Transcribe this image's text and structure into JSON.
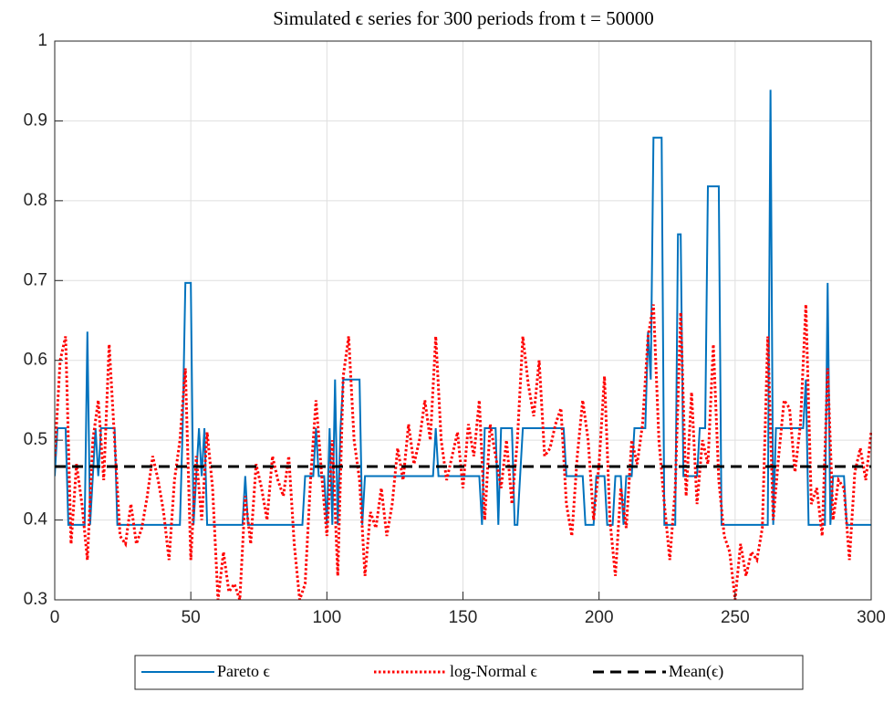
{
  "chart_data": {
    "type": "line",
    "title": "Simulated ϵ series for 300 periods from t = 50000",
    "xlim": [
      0,
      300
    ],
    "xticks": [
      0,
      50,
      100,
      150,
      200,
      250,
      300
    ],
    "ylim": [
      0.3,
      1
    ],
    "yticks": [
      0.3,
      0.4,
      0.5,
      0.6,
      0.7,
      0.8,
      0.9,
      1
    ],
    "grid": true,
    "legend": "bottom",
    "series": [
      {
        "name": "Pareto ϵ",
        "color": "#0072bd",
        "linestyle": "solid",
        "x": [
          0,
          1,
          4,
          5,
          11,
          12,
          13,
          14,
          15,
          16,
          17,
          22,
          23,
          46,
          47,
          48,
          50,
          51,
          52,
          53,
          54,
          55,
          56,
          69,
          70,
          71,
          91,
          92,
          95,
          96,
          97,
          99,
          100,
          101,
          102,
          103,
          104,
          105,
          106,
          112,
          113,
          114,
          139,
          140,
          141,
          156,
          157,
          158,
          162,
          163,
          164,
          168,
          169,
          170,
          171,
          172,
          187,
          188,
          194,
          195,
          198,
          199,
          202,
          203,
          205,
          206,
          208,
          209,
          210,
          212,
          213,
          217,
          218,
          219,
          220,
          223,
          224,
          228,
          229,
          230,
          231,
          236,
          237,
          239,
          240,
          244,
          245,
          262,
          263,
          264,
          265,
          275,
          276,
          277,
          283,
          284,
          285,
          286,
          290,
          291,
          300
        ],
        "values": [
          0.455,
          0.515,
          0.515,
          0.394,
          0.394,
          0.636,
          0.394,
          0.455,
          0.515,
          0.455,
          0.515,
          0.515,
          0.394,
          0.394,
          0.515,
          0.697,
          0.697,
          0.394,
          0.455,
          0.515,
          0.455,
          0.515,
          0.394,
          0.394,
          0.455,
          0.394,
          0.394,
          0.455,
          0.455,
          0.515,
          0.455,
          0.455,
          0.394,
          0.515,
          0.394,
          0.576,
          0.394,
          0.515,
          0.576,
          0.576,
          0.394,
          0.455,
          0.455,
          0.515,
          0.455,
          0.455,
          0.394,
          0.515,
          0.515,
          0.394,
          0.515,
          0.515,
          0.394,
          0.394,
          0.455,
          0.515,
          0.515,
          0.455,
          0.455,
          0.394,
          0.394,
          0.455,
          0.455,
          0.394,
          0.394,
          0.455,
          0.455,
          0.394,
          0.455,
          0.455,
          0.515,
          0.515,
          0.636,
          0.576,
          0.879,
          0.879,
          0.394,
          0.394,
          0.758,
          0.758,
          0.455,
          0.455,
          0.515,
          0.515,
          0.818,
          0.818,
          0.394,
          0.394,
          0.939,
          0.394,
          0.515,
          0.515,
          0.576,
          0.394,
          0.394,
          0.697,
          0.394,
          0.455,
          0.455,
          0.394,
          0.394
        ]
      },
      {
        "name": "log-Normal ϵ",
        "color": "#ff0000",
        "linestyle": "dotted",
        "x": [
          0,
          2,
          4,
          6,
          8,
          10,
          12,
          14,
          16,
          18,
          20,
          22,
          24,
          26,
          28,
          30,
          32,
          34,
          36,
          38,
          40,
          42,
          44,
          46,
          48,
          50,
          52,
          54,
          56,
          58,
          60,
          62,
          64,
          66,
          68,
          70,
          72,
          74,
          76,
          78,
          80,
          82,
          84,
          86,
          88,
          90,
          92,
          94,
          96,
          98,
          100,
          102,
          104,
          106,
          108,
          110,
          112,
          114,
          116,
          118,
          120,
          122,
          124,
          126,
          128,
          130,
          132,
          134,
          136,
          138,
          140,
          142,
          144,
          146,
          148,
          150,
          152,
          154,
          156,
          158,
          160,
          162,
          164,
          166,
          168,
          170,
          172,
          174,
          176,
          178,
          180,
          182,
          184,
          186,
          188,
          190,
          192,
          194,
          196,
          198,
          200,
          202,
          204,
          206,
          208,
          210,
          212,
          214,
          216,
          218,
          220,
          222,
          224,
          226,
          228,
          230,
          232,
          234,
          236,
          238,
          240,
          242,
          244,
          246,
          248,
          250,
          252,
          254,
          256,
          258,
          260,
          262,
          264,
          266,
          268,
          270,
          272,
          274,
          276,
          278,
          280,
          282,
          284,
          286,
          288,
          290,
          292,
          294,
          296,
          298,
          300
        ],
        "values": [
          0.48,
          0.6,
          0.63,
          0.37,
          0.47,
          0.42,
          0.35,
          0.5,
          0.55,
          0.45,
          0.62,
          0.5,
          0.38,
          0.37,
          0.42,
          0.37,
          0.39,
          0.43,
          0.48,
          0.45,
          0.41,
          0.35,
          0.45,
          0.5,
          0.59,
          0.35,
          0.48,
          0.4,
          0.51,
          0.44,
          0.3,
          0.36,
          0.31,
          0.32,
          0.3,
          0.43,
          0.37,
          0.47,
          0.44,
          0.4,
          0.48,
          0.45,
          0.43,
          0.48,
          0.37,
          0.3,
          0.32,
          0.45,
          0.55,
          0.46,
          0.38,
          0.5,
          0.33,
          0.58,
          0.63,
          0.5,
          0.45,
          0.33,
          0.41,
          0.39,
          0.44,
          0.38,
          0.42,
          0.49,
          0.45,
          0.52,
          0.47,
          0.5,
          0.55,
          0.5,
          0.63,
          0.5,
          0.45,
          0.48,
          0.51,
          0.44,
          0.52,
          0.48,
          0.55,
          0.4,
          0.52,
          0.48,
          0.44,
          0.5,
          0.42,
          0.5,
          0.63,
          0.57,
          0.53,
          0.6,
          0.48,
          0.49,
          0.52,
          0.54,
          0.42,
          0.38,
          0.48,
          0.55,
          0.5,
          0.4,
          0.47,
          0.58,
          0.4,
          0.33,
          0.44,
          0.39,
          0.5,
          0.47,
          0.52,
          0.63,
          0.67,
          0.5,
          0.42,
          0.35,
          0.44,
          0.66,
          0.43,
          0.56,
          0.42,
          0.5,
          0.47,
          0.62,
          0.45,
          0.38,
          0.36,
          0.3,
          0.37,
          0.33,
          0.36,
          0.35,
          0.39,
          0.63,
          0.4,
          0.48,
          0.55,
          0.54,
          0.46,
          0.52,
          0.67,
          0.42,
          0.44,
          0.38,
          0.59,
          0.4,
          0.45,
          0.44,
          0.35,
          0.46,
          0.49,
          0.45,
          0.51
        ]
      },
      {
        "name": "Mean(ϵ)",
        "color": "#000000",
        "linestyle": "dashed",
        "x": [
          0,
          300
        ],
        "values": [
          0.467,
          0.467
        ]
      }
    ]
  }
}
